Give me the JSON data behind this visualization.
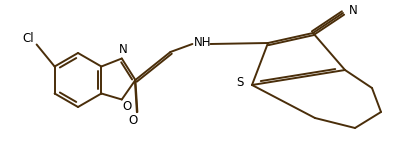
{
  "background_color": "#ffffff",
  "line_color": "#4a2e0a",
  "line_width": 1.4,
  "font_size": 9,
  "fig_width": 4.11,
  "fig_height": 1.55,
  "dpi": 100,
  "xlim": [
    0,
    411
  ],
  "ylim": [
    0,
    155
  ]
}
